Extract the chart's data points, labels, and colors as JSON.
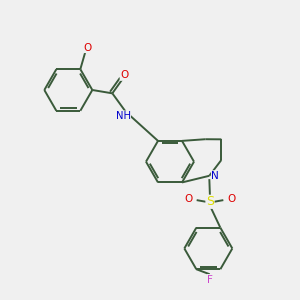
{
  "bg_color": "#f0f0f0",
  "bond_color": "#3a5a3a",
  "atom_colors": {
    "O": "#dd0000",
    "N": "#0000cc",
    "S": "#dddd00",
    "F": "#cc44cc",
    "H": "#555555",
    "C": "#3a5a3a"
  },
  "figsize": [
    3.0,
    3.0
  ],
  "dpi": 100,
  "lw": 1.4,
  "ring_r": 0.072,
  "sep": 0.007
}
